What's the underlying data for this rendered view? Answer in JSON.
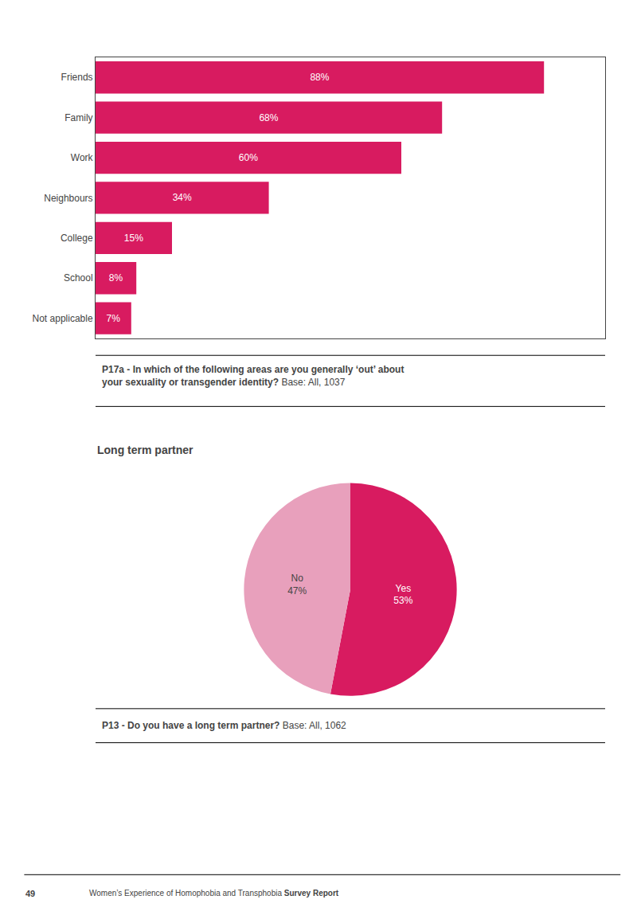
{
  "chart_data": [
    {
      "type": "bar",
      "orientation": "horizontal",
      "title": "P17a - In which of the following areas are you generally ‘out’ about your sexuality or transgender identity?",
      "subtitle": "Base: All, 1037",
      "categories": [
        "Friends",
        "Family",
        "Work",
        "Neighbours",
        "College",
        "School",
        "Not applicable"
      ],
      "values": [
        88,
        68,
        60,
        34,
        15,
        8,
        7
      ],
      "value_labels": [
        "88%",
        "68%",
        "60%",
        "34%",
        "15%",
        "8%",
        "7%"
      ],
      "color": "#D81B60",
      "xlim": [
        0,
        100
      ],
      "data_labels": true,
      "tick_labels": "y",
      "grid": false
    },
    {
      "type": "pie",
      "title": "Long term partner",
      "categories": [
        "Yes",
        "No"
      ],
      "values": [
        53,
        47
      ],
      "value_labels": [
        "53%",
        "47%"
      ],
      "colors": [
        "#D81B60",
        "#E8A0BC"
      ],
      "data_labels": true,
      "annotations": [
        "P13 - Do you have a long term partner?",
        "Base: All, 1062",
        "49",
        "Women’s Experience of Homophobia and Transphobia",
        "Survey Report"
      ]
    }
  ]
}
